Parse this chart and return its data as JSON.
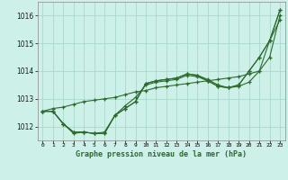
{
  "title": "Graphe pression niveau de la mer (hPa)",
  "bg_color": "#cdf0e8",
  "grid_color": "#aad8cc",
  "line_color": "#2d6a2d",
  "x_labels": [
    "0",
    "1",
    "2",
    "3",
    "4",
    "5",
    "6",
    "7",
    "8",
    "9",
    "10",
    "11",
    "12",
    "13",
    "14",
    "15",
    "16",
    "17",
    "18",
    "19",
    "20",
    "21",
    "22",
    "23"
  ],
  "ylim": [
    1011.5,
    1016.5
  ],
  "yticks": [
    1012,
    1013,
    1014,
    1015,
    1016
  ],
  "series": [
    [
      1012.55,
      1012.55,
      1012.1,
      1011.8,
      1011.8,
      1011.75,
      1011.75,
      1012.4,
      1012.65,
      1012.9,
      1013.55,
      1013.65,
      1013.7,
      1013.75,
      1013.9,
      1013.85,
      1013.7,
      1013.5,
      1013.4,
      1013.45,
      1013.6,
      1014.0,
      1014.5,
      1016.0
    ],
    [
      1012.55,
      1012.55,
      1012.1,
      1011.8,
      1011.8,
      1011.75,
      1011.75,
      1012.4,
      1012.65,
      1012.9,
      1013.55,
      1013.65,
      1013.7,
      1013.75,
      1013.9,
      1013.85,
      1013.65,
      1013.45,
      1013.4,
      1013.5,
      1014.0,
      1014.5,
      1015.1,
      1016.2
    ],
    [
      1012.55,
      1012.55,
      1012.1,
      1011.75,
      1011.8,
      1011.75,
      1011.8,
      1012.4,
      1012.75,
      1013.05,
      1013.5,
      1013.6,
      1013.65,
      1013.7,
      1013.85,
      1013.8,
      1013.65,
      1013.45,
      1013.4,
      1013.5,
      1014.0,
      1014.5,
      1015.1,
      1016.2
    ],
    [
      1012.55,
      1012.65,
      1012.7,
      1012.8,
      1012.9,
      1012.95,
      1013.0,
      1013.05,
      1013.15,
      1013.25,
      1013.3,
      1013.4,
      1013.45,
      1013.5,
      1013.55,
      1013.6,
      1013.65,
      1013.7,
      1013.75,
      1013.8,
      1013.9,
      1014.0,
      1015.1,
      1015.85
    ]
  ]
}
